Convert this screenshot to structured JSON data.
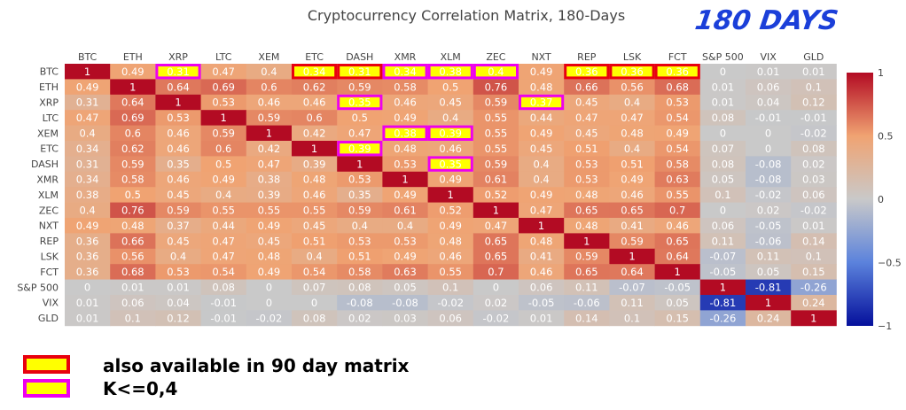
{
  "badge": "180 DAYS",
  "legend": [
    {
      "label": "also available in 90 day matrix",
      "border": "#e8000f",
      "fill": "#ffff00"
    },
    {
      "label": "K<=0,4",
      "border": "#ee00ee",
      "fill": "#ffff00"
    }
  ],
  "colors": {
    "highlight_90_day": "#e8000f",
    "highlight_k_le_04": "#ee00ee",
    "colorscale": [
      "#05109c",
      "#5b82dc",
      "#c9c9c9",
      "#f0a372",
      "#b30b23"
    ]
  },
  "chart_data": {
    "type": "heatmap",
    "title": "Cryptocurrency Correlation Matrix, 180-Days",
    "x": [
      "BTC",
      "ETH",
      "XRP",
      "LTC",
      "XEM",
      "ETC",
      "DASH",
      "XMR",
      "XLM",
      "ZEC",
      "NXT",
      "REP",
      "LSK",
      "FCT",
      "S&P 500",
      "VIX",
      "GLD"
    ],
    "y": [
      "BTC",
      "ETH",
      "XRP",
      "LTC",
      "XEM",
      "ETC",
      "DASH",
      "XMR",
      "XLM",
      "ZEC",
      "NXT",
      "REP",
      "LSK",
      "FCT",
      "S&P 500",
      "VIX",
      "GLD"
    ],
    "z": [
      [
        1,
        0.49,
        0.31,
        0.47,
        0.4,
        0.34,
        0.31,
        0.34,
        0.38,
        0.4,
        0.49,
        0.36,
        0.36,
        0.36,
        0,
        0.01,
        0.01
      ],
      [
        0.49,
        1,
        0.64,
        0.69,
        0.6,
        0.62,
        0.59,
        0.58,
        0.5,
        0.76,
        0.48,
        0.66,
        0.56,
        0.68,
        0.01,
        0.06,
        0.1
      ],
      [
        0.31,
        0.64,
        1,
        0.53,
        0.46,
        0.46,
        0.35,
        0.46,
        0.45,
        0.59,
        0.37,
        0.45,
        0.4,
        0.53,
        0.01,
        0.04,
        0.12
      ],
      [
        0.47,
        0.69,
        0.53,
        1,
        0.59,
        0.6,
        0.5,
        0.49,
        0.4,
        0.55,
        0.44,
        0.47,
        0.47,
        0.54,
        0.08,
        -0.01,
        -0.01
      ],
      [
        0.4,
        0.6,
        0.46,
        0.59,
        1,
        0.42,
        0.47,
        0.38,
        0.39,
        0.55,
        0.49,
        0.45,
        0.48,
        0.49,
        0,
        0,
        -0.02
      ],
      [
        0.34,
        0.62,
        0.46,
        0.6,
        0.42,
        1,
        0.39,
        0.48,
        0.46,
        0.55,
        0.45,
        0.51,
        0.4,
        0.54,
        0.07,
        0,
        0.08
      ],
      [
        0.31,
        0.59,
        0.35,
        0.5,
        0.47,
        0.39,
        1,
        0.53,
        0.35,
        0.59,
        0.4,
        0.53,
        0.51,
        0.58,
        0.08,
        -0.08,
        0.02
      ],
      [
        0.34,
        0.58,
        0.46,
        0.49,
        0.38,
        0.48,
        0.53,
        1,
        0.49,
        0.61,
        0.4,
        0.53,
        0.49,
        0.63,
        0.05,
        -0.08,
        0.03
      ],
      [
        0.38,
        0.5,
        0.45,
        0.4,
        0.39,
        0.46,
        0.35,
        0.49,
        1,
        0.52,
        0.49,
        0.48,
        0.46,
        0.55,
        0.1,
        -0.02,
        0.06
      ],
      [
        0.4,
        0.76,
        0.59,
        0.55,
        0.55,
        0.55,
        0.59,
        0.61,
        0.52,
        1,
        0.47,
        0.65,
        0.65,
        0.7,
        0,
        0.02,
        -0.02
      ],
      [
        0.49,
        0.48,
        0.37,
        0.44,
        0.49,
        0.45,
        0.4,
        0.4,
        0.49,
        0.47,
        1,
        0.48,
        0.41,
        0.46,
        0.06,
        -0.05,
        0.01
      ],
      [
        0.36,
        0.66,
        0.45,
        0.47,
        0.45,
        0.51,
        0.53,
        0.53,
        0.48,
        0.65,
        0.48,
        1,
        0.59,
        0.65,
        0.11,
        -0.06,
        0.14
      ],
      [
        0.36,
        0.56,
        0.4,
        0.47,
        0.48,
        0.4,
        0.51,
        0.49,
        0.46,
        0.65,
        0.41,
        0.59,
        1,
        0.64,
        -0.07,
        0.11,
        0.1
      ],
      [
        0.36,
        0.68,
        0.53,
        0.54,
        0.49,
        0.54,
        0.58,
        0.63,
        0.55,
        0.7,
        0.46,
        0.65,
        0.64,
        1,
        -0.05,
        0.05,
        0.15
      ],
      [
        0,
        0.01,
        0.01,
        0.08,
        0,
        0.07,
        0.08,
        0.05,
        0.1,
        0,
        0.06,
        0.11,
        -0.07,
        -0.05,
        1,
        -0.81,
        -0.26
      ],
      [
        0.01,
        0.06,
        0.04,
        -0.01,
        0,
        0,
        -0.08,
        -0.08,
        -0.02,
        0.02,
        -0.05,
        -0.06,
        0.11,
        0.05,
        -0.81,
        1,
        0.24
      ],
      [
        0.01,
        0.1,
        0.12,
        -0.01,
        -0.02,
        0.08,
        0.02,
        0.03,
        0.06,
        -0.02,
        0.01,
        0.14,
        0.1,
        0.15,
        -0.26,
        0.24,
        1
      ]
    ],
    "zmin": -1,
    "zmax": 1,
    "colorbar_ticks": [
      1,
      0.5,
      0,
      -0.5,
      -1
    ],
    "highlights_90_day": [
      [
        0,
        5
      ],
      [
        0,
        6
      ],
      [
        0,
        11
      ],
      [
        0,
        12
      ],
      [
        0,
        13
      ]
    ],
    "highlights_k_le_04": [
      [
        0,
        2
      ],
      [
        0,
        7
      ],
      [
        0,
        8
      ],
      [
        0,
        9
      ],
      [
        2,
        6
      ],
      [
        2,
        10
      ],
      [
        4,
        7
      ],
      [
        4,
        8
      ],
      [
        5,
        6
      ],
      [
        6,
        8
      ]
    ],
    "legend_position": "bottom-left"
  }
}
